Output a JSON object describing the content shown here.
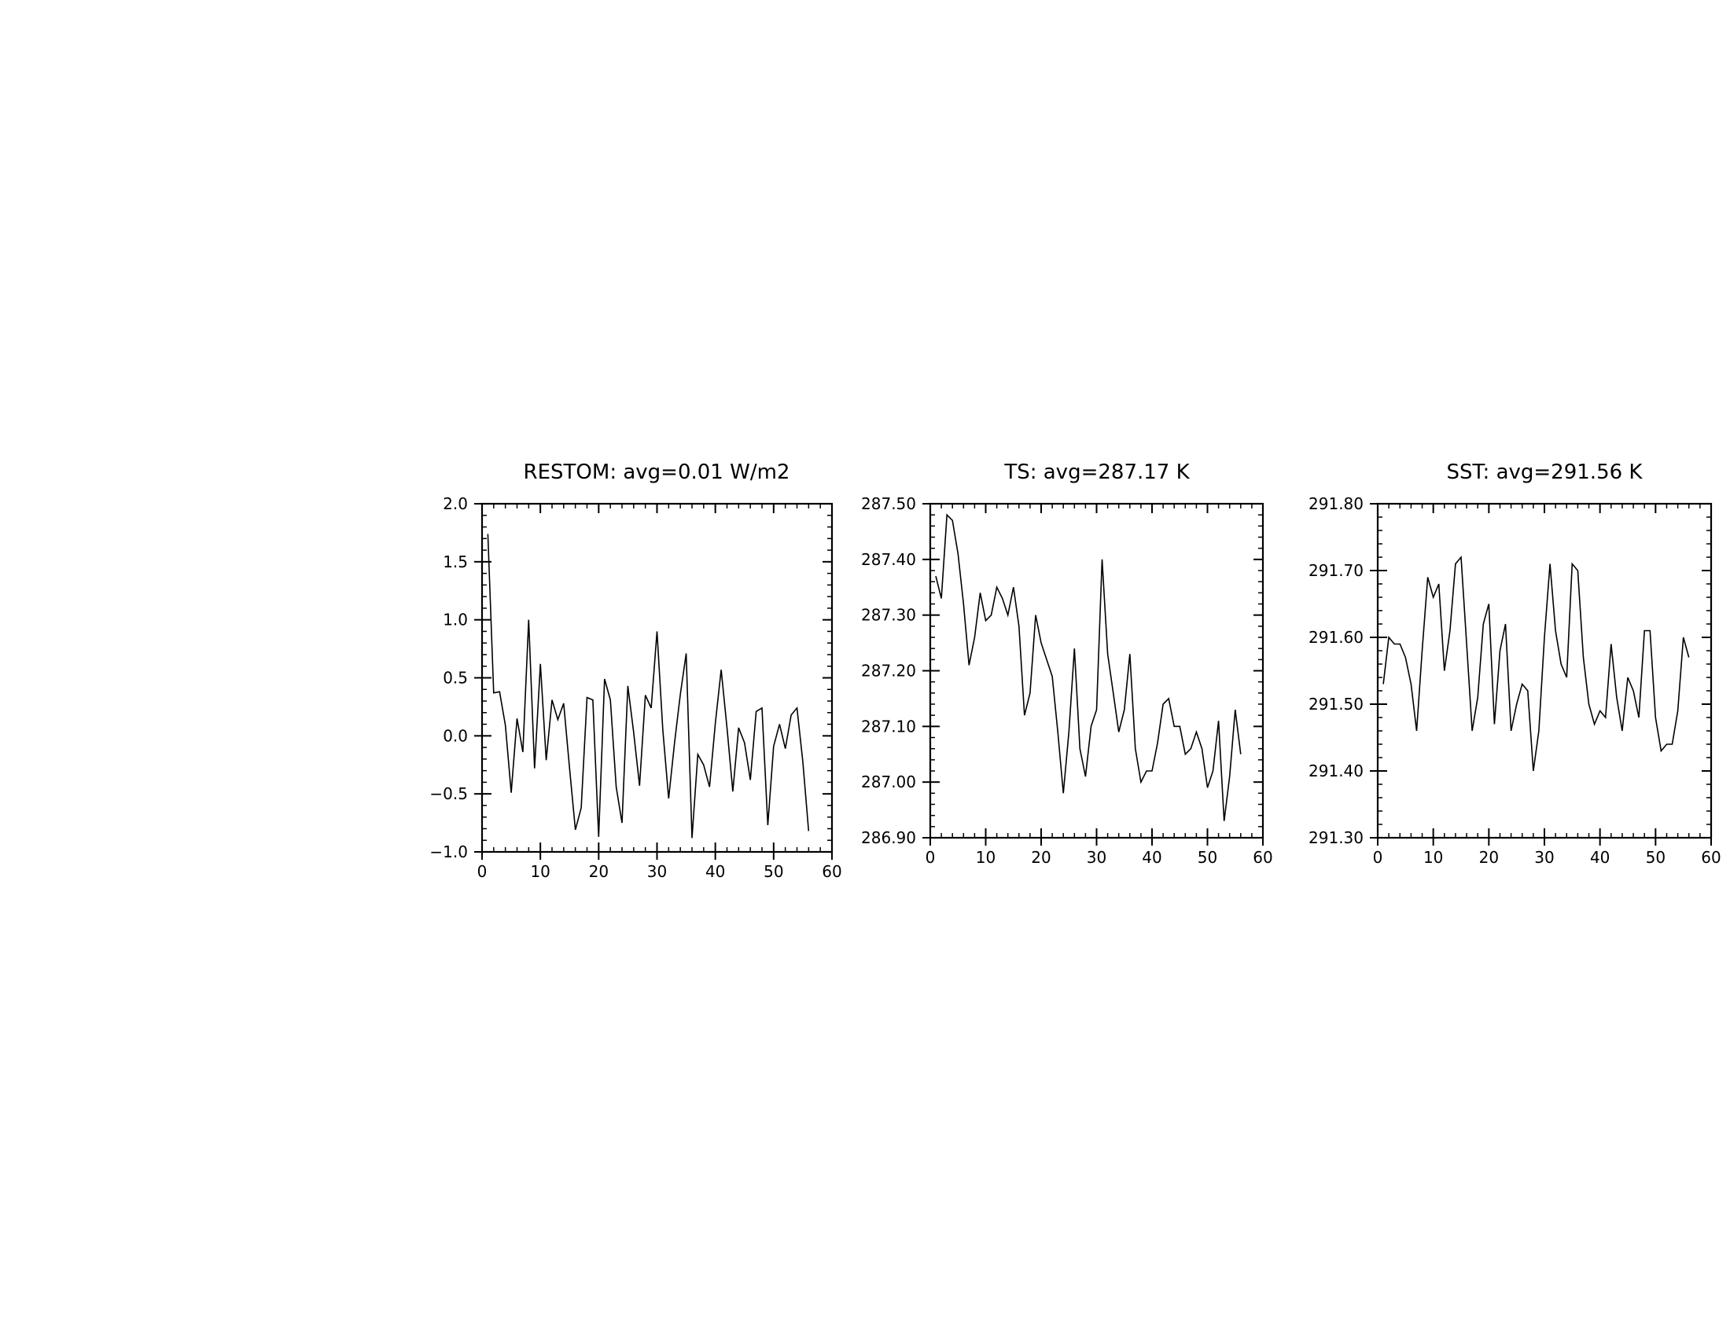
{
  "chart_data": [
    {
      "type": "line",
      "title": "RESTOM: avg=0.01 W/m2",
      "xlim": [
        0,
        60
      ],
      "ylim": [
        -1.0,
        2.0
      ],
      "xticks": [
        0,
        10,
        20,
        30,
        40,
        50,
        60
      ],
      "xtick_labels": [
        "0",
        "10",
        "20",
        "30",
        "40",
        "50",
        "60"
      ],
      "xminor": 2,
      "yticks": [
        -1.0,
        -0.5,
        0.0,
        0.5,
        1.0,
        1.5,
        2.0
      ],
      "ytick_labels": [
        "−1.0",
        "−0.5",
        "0.0",
        "0.5",
        "1.0",
        "1.5",
        "2.0"
      ],
      "yminor": 0.1,
      "x": [
        1,
        2,
        3,
        4,
        5,
        6,
        7,
        8,
        9,
        10,
        11,
        12,
        13,
        14,
        15,
        16,
        17,
        18,
        19,
        20,
        21,
        22,
        23,
        24,
        25,
        26,
        27,
        28,
        29,
        30,
        31,
        32,
        33,
        34,
        35,
        36,
        37,
        38,
        39,
        40,
        41,
        42,
        43,
        44,
        45,
        46,
        47,
        48,
        49,
        50,
        51,
        52,
        53,
        54,
        55,
        56
      ],
      "values": [
        1.74,
        0.37,
        0.38,
        0.09,
        -0.49,
        0.15,
        -0.14,
        1.0,
        -0.28,
        0.62,
        -0.21,
        0.31,
        0.14,
        0.28,
        -0.28,
        -0.81,
        -0.62,
        0.33,
        0.31,
        -0.87,
        0.49,
        0.31,
        -0.44,
        -0.75,
        0.43,
        0.03,
        -0.43,
        0.35,
        0.24,
        0.9,
        0.05,
        -0.54,
        -0.06,
        0.36,
        0.71,
        -0.88,
        -0.16,
        -0.25,
        -0.44,
        0.11,
        0.57,
        0.07,
        -0.48,
        0.07,
        -0.06,
        -0.38,
        0.21,
        0.24,
        -0.77,
        -0.09,
        0.1,
        -0.11,
        0.18,
        0.24,
        -0.22,
        -0.82
      ]
    },
    {
      "type": "line",
      "title": "TS: avg=287.17 K",
      "xlim": [
        0,
        60
      ],
      "ylim": [
        286.9,
        287.5
      ],
      "xticks": [
        0,
        10,
        20,
        30,
        40,
        50,
        60
      ],
      "xtick_labels": [
        "0",
        "10",
        "20",
        "30",
        "40",
        "50",
        "60"
      ],
      "xminor": 2,
      "yticks": [
        286.9,
        287.0,
        287.1,
        287.2,
        287.3,
        287.4,
        287.5
      ],
      "ytick_labels": [
        "286.90",
        "287.00",
        "287.10",
        "287.20",
        "287.30",
        "287.40",
        "287.50"
      ],
      "yminor": 0.02,
      "x": [
        1,
        2,
        3,
        4,
        5,
        6,
        7,
        8,
        9,
        10,
        11,
        12,
        13,
        14,
        15,
        16,
        17,
        18,
        19,
        20,
        21,
        22,
        23,
        24,
        25,
        26,
        27,
        28,
        29,
        30,
        31,
        32,
        33,
        34,
        35,
        36,
        37,
        38,
        39,
        40,
        41,
        42,
        43,
        44,
        45,
        46,
        47,
        48,
        49,
        50,
        51,
        52,
        53,
        54,
        55,
        56
      ],
      "values": [
        287.37,
        287.33,
        287.48,
        287.47,
        287.41,
        287.32,
        287.21,
        287.26,
        287.34,
        287.29,
        287.3,
        287.35,
        287.33,
        287.3,
        287.35,
        287.28,
        287.12,
        287.16,
        287.3,
        287.25,
        287.22,
        287.19,
        287.09,
        286.98,
        287.09,
        287.24,
        287.06,
        287.01,
        287.1,
        287.13,
        287.4,
        287.23,
        287.16,
        287.09,
        287.13,
        287.23,
        287.06,
        287.0,
        287.02,
        287.02,
        287.07,
        287.14,
        287.15,
        287.1,
        287.1,
        287.05,
        287.06,
        287.09,
        287.06,
        286.99,
        287.02,
        287.11,
        286.93,
        287.01,
        287.13,
        287.05
      ]
    },
    {
      "type": "line",
      "title": "SST: avg=291.56 K",
      "xlim": [
        0,
        60
      ],
      "ylim": [
        291.3,
        291.8
      ],
      "xticks": [
        0,
        10,
        20,
        30,
        40,
        50,
        60
      ],
      "xtick_labels": [
        "0",
        "10",
        "20",
        "30",
        "40",
        "50",
        "60"
      ],
      "xminor": 2,
      "yticks": [
        291.3,
        291.4,
        291.5,
        291.6,
        291.7,
        291.8
      ],
      "ytick_labels": [
        "291.30",
        "291.40",
        "291.50",
        "291.60",
        "291.70",
        "291.80"
      ],
      "yminor": 0.02,
      "x": [
        1,
        2,
        3,
        4,
        5,
        6,
        7,
        8,
        9,
        10,
        11,
        12,
        13,
        14,
        15,
        16,
        17,
        18,
        19,
        20,
        21,
        22,
        23,
        24,
        25,
        26,
        27,
        28,
        29,
        30,
        31,
        32,
        33,
        34,
        35,
        36,
        37,
        38,
        39,
        40,
        41,
        42,
        43,
        44,
        45,
        46,
        47,
        48,
        49,
        50,
        51,
        52,
        53,
        54,
        55,
        56
      ],
      "values": [
        291.53,
        291.6,
        291.59,
        291.59,
        291.57,
        291.53,
        291.46,
        291.58,
        291.69,
        291.66,
        291.68,
        291.55,
        291.61,
        291.71,
        291.72,
        291.59,
        291.46,
        291.51,
        291.62,
        291.65,
        291.47,
        291.58,
        291.62,
        291.46,
        291.5,
        291.53,
        291.52,
        291.4,
        291.46,
        291.6,
        291.71,
        291.61,
        291.56,
        291.54,
        291.71,
        291.7,
        291.57,
        291.5,
        291.47,
        291.49,
        291.48,
        291.59,
        291.51,
        291.46,
        291.54,
        291.52,
        291.48,
        291.61,
        291.61,
        291.48,
        291.43,
        291.44,
        291.44,
        291.49,
        291.6,
        291.57
      ]
    }
  ]
}
